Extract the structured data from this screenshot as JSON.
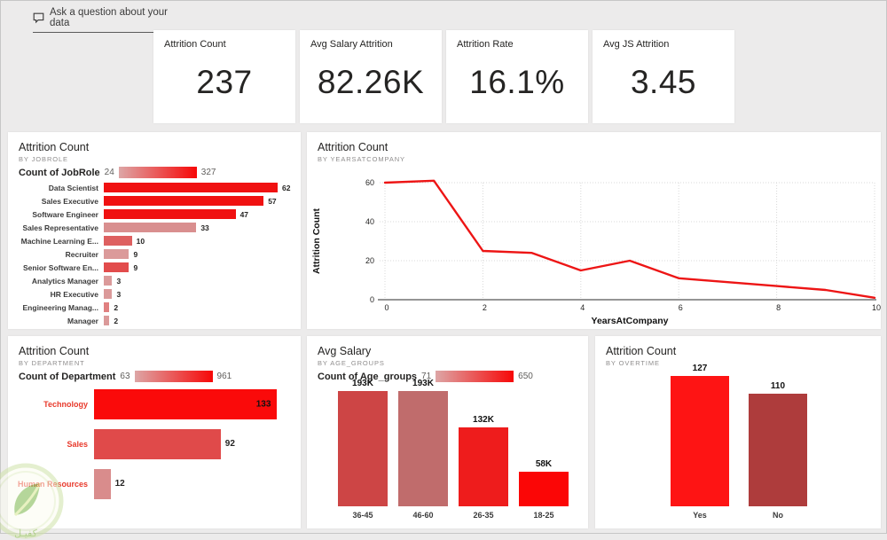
{
  "qa": {
    "label": "Ask a question about your data"
  },
  "kpis": [
    {
      "label": "Attrition Count",
      "value": "237"
    },
    {
      "label": "Avg Salary Attrition",
      "value": "82.26K"
    },
    {
      "label": "Attrition Rate",
      "value": "16.1%"
    },
    {
      "label": "Avg JS Attrition",
      "value": "3.45"
    }
  ],
  "chart_data": [
    {
      "id": "jobrole",
      "type": "bar",
      "orientation": "horizontal",
      "title": "Attrition Count",
      "subtitle": "BY JOBROLE",
      "legend": {
        "label": "Count of JobRole",
        "min": "24",
        "max": "327"
      },
      "categories": [
        "Data Scientist",
        "Sales Executive",
        "Software Engineer",
        "Sales Representative",
        "Machine Learning E...",
        "Recruiter",
        "Senior Software En...",
        "Analytics Manager",
        "HR Executive",
        "Engineering Manag...",
        "Manager"
      ],
      "values": [
        62,
        57,
        47,
        33,
        10,
        9,
        9,
        3,
        3,
        2,
        2
      ],
      "bar_colors": [
        "#f01111",
        "#f01111",
        "#f01111",
        "#d98f8f",
        "#de6060",
        "#db9a9a",
        "#e24c4c",
        "#db9a9a",
        "#db9a9a",
        "#e08080",
        "#db9a9a"
      ],
      "xmax": 62
    },
    {
      "id": "years",
      "type": "line",
      "title": "Attrition Count",
      "subtitle": "BY YEARSATCOMPANY",
      "x": [
        0,
        1,
        2,
        3,
        4,
        5,
        6,
        7,
        8,
        9,
        10
      ],
      "y": [
        60,
        61,
        25,
        24,
        15,
        20,
        11,
        9,
        7,
        5,
        1
      ],
      "xlabel": "YearsAtCompany",
      "ylabel": "Attrition Count",
      "xticks": [
        0,
        2,
        4,
        6,
        8,
        10
      ],
      "yticks": [
        0,
        20,
        40,
        60
      ],
      "ylim": [
        0,
        65
      ],
      "xlim": [
        0,
        10
      ],
      "line_color": "#ed1515",
      "grid": true,
      "legend_position": "none"
    },
    {
      "id": "department",
      "type": "bar",
      "orientation": "horizontal",
      "title": "Attrition Count",
      "subtitle": "BY DEPARTMENT",
      "legend": {
        "label": "Count of Department",
        "min": "63",
        "max": "961"
      },
      "categories": [
        "Technology",
        "Sales",
        "Human Resources"
      ],
      "values": [
        133,
        92,
        12
      ],
      "bar_colors": [
        "#fa0a0a",
        "#e04a4a",
        "#d98c8c"
      ],
      "value_inside": [
        true,
        false,
        false
      ],
      "xmax": 134
    },
    {
      "id": "age",
      "type": "column",
      "title": "Avg Salary",
      "subtitle": "BY AGE_GROUPS",
      "legend": {
        "label": "Count of Age_groups",
        "min": "71",
        "max": "650"
      },
      "categories": [
        "36-45",
        "46-60",
        "26-35",
        "18-25"
      ],
      "values": [
        193,
        193,
        132,
        58
      ],
      "value_labels": [
        "193K",
        "193K",
        "132K",
        "58K"
      ],
      "bar_colors": [
        "#cd4545",
        "#c06c6c",
        "#ee1c1c",
        "#fb0606"
      ],
      "ymax": 193
    },
    {
      "id": "overtime",
      "type": "column",
      "title": "Attrition Count",
      "subtitle": "BY OVERTIME",
      "categories": [
        "Yes",
        "No"
      ],
      "values": [
        127,
        110
      ],
      "value_labels": [
        "127",
        "110"
      ],
      "bar_colors": [
        "#fe1414",
        "#ae3c3c"
      ],
      "ymax": 127
    }
  ],
  "colors": {
    "accent_red": "#ed1515",
    "background": "#ecebeb",
    "card": "#ffffff",
    "category_red_label": "#e8392b"
  },
  "watermark": {
    "text": "كفيـل"
  }
}
